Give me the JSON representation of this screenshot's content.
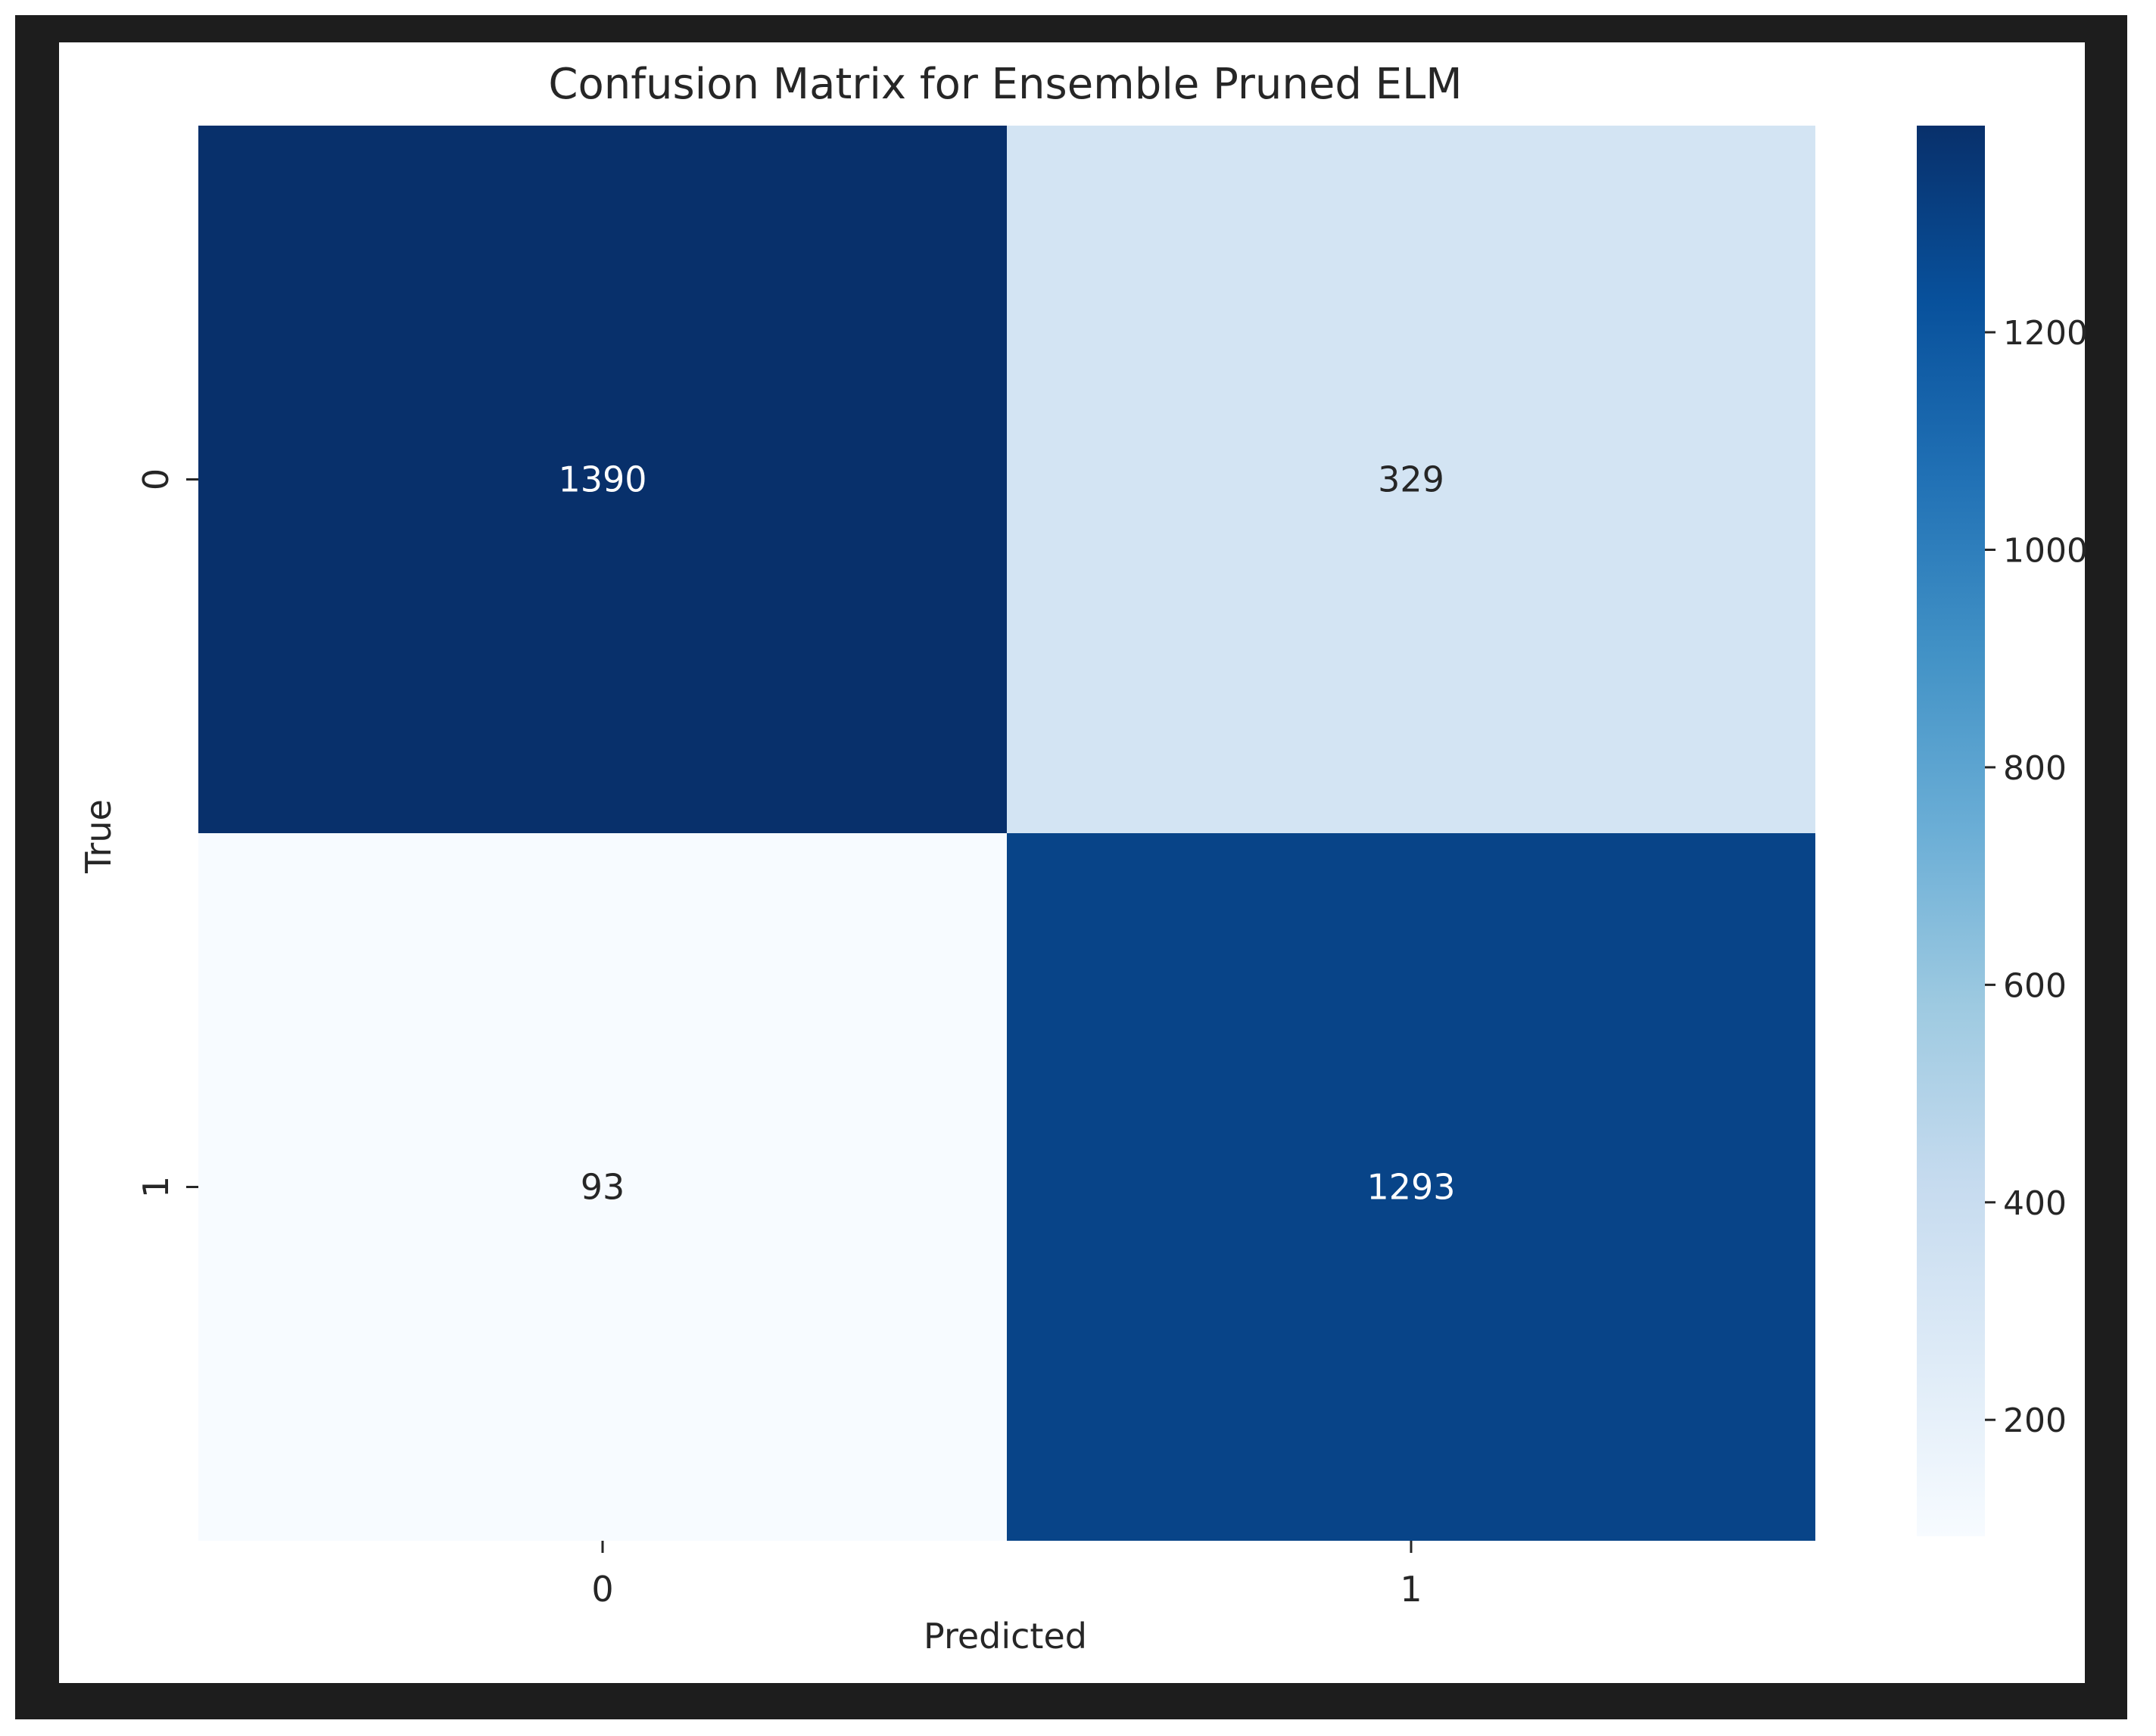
{
  "chart_data": {
    "type": "heatmap",
    "title": "Confusion Matrix for Ensemble Pruned ELM",
    "xlabel": "Predicted",
    "ylabel": "True",
    "x_categories": [
      "0",
      "1"
    ],
    "y_categories": [
      "0",
      "1"
    ],
    "values": [
      [
        1390,
        329
      ],
      [
        93,
        1293
      ]
    ],
    "colormap": "Blues",
    "colorbar": {
      "vmin": 93,
      "vmax": 1390,
      "ticks": [
        200,
        400,
        600,
        800,
        1000,
        1200
      ]
    },
    "colors": {
      "frame": "#1d1d1d",
      "background": "#ffffff",
      "text_dark": "#262626",
      "text_light": "#ffffff"
    },
    "grid": false,
    "legend": "colorbar-right"
  }
}
